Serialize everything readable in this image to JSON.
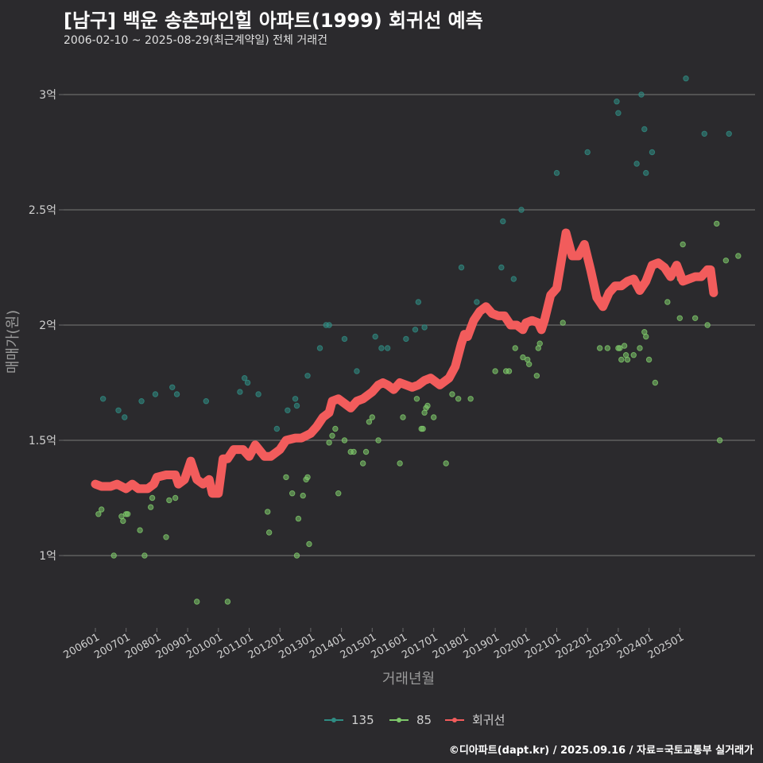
{
  "title": "[남구] 백운 송촌파인힐 아파트(1999) 회귀선 예측",
  "subtitle": "2006-02-10 ~ 2025-08-29(최근계약일) 전체 거래건",
  "source": "©디아파트(dapt.kr) / 2025.09.16 / 자료=국토교통부 실거래가",
  "colors": {
    "background": "#2b2a2d",
    "grid": "#6a6a6a",
    "s135": "#2f8c83",
    "s85": "#7ec86a",
    "regression": "#f25c5c"
  },
  "chart_data": {
    "type": "scatter",
    "xlabel": "거래년월",
    "ylabel": "매매가(원)",
    "ylim": [
      0.7,
      3.2
    ],
    "xlim": [
      2005.6,
      2026.1
    ],
    "x_ticks": [
      "200601",
      "200701",
      "200801",
      "200901",
      "201001",
      "201101",
      "201201",
      "201301",
      "201401",
      "201501",
      "201601",
      "201701",
      "201801",
      "201901",
      "202001",
      "202101",
      "202201",
      "202301",
      "202401",
      "202501"
    ],
    "y_ticks": [
      {
        "value": 1.0,
        "label": "1억"
      },
      {
        "value": 1.5,
        "label": "1.5억"
      },
      {
        "value": 2.0,
        "label": "2억"
      },
      {
        "value": 2.5,
        "label": "2.5억"
      },
      {
        "value": 3.0,
        "label": "3억"
      }
    ],
    "legend": [
      {
        "name": "135",
        "color": "#2f8c83"
      },
      {
        "name": "85",
        "color": "#7ec86a"
      },
      {
        "name": "회귀선",
        "color": "#f25c5c"
      }
    ],
    "series": [
      {
        "name": "135",
        "points": [
          [
            2006.25,
            1.68
          ],
          [
            2006.75,
            1.63
          ],
          [
            2006.95,
            1.6
          ],
          [
            2007.5,
            1.67
          ],
          [
            2007.95,
            1.7
          ],
          [
            2008.5,
            1.73
          ],
          [
            2008.65,
            1.7
          ],
          [
            2009.6,
            1.67
          ],
          [
            2010.7,
            1.71
          ],
          [
            2010.85,
            1.77
          ],
          [
            2010.95,
            1.75
          ],
          [
            2011.3,
            1.7
          ],
          [
            2011.9,
            1.55
          ],
          [
            2012.25,
            1.63
          ],
          [
            2012.5,
            1.68
          ],
          [
            2012.55,
            1.65
          ],
          [
            2012.9,
            1.78
          ],
          [
            2013.3,
            1.9
          ],
          [
            2013.5,
            2.0
          ],
          [
            2013.6,
            2.0
          ],
          [
            2014.1,
            1.94
          ],
          [
            2014.5,
            1.8
          ],
          [
            2015.1,
            1.95
          ],
          [
            2015.3,
            1.9
          ],
          [
            2015.5,
            1.9
          ],
          [
            2016.1,
            1.94
          ],
          [
            2016.4,
            1.98
          ],
          [
            2016.5,
            2.1
          ],
          [
            2016.7,
            1.99
          ],
          [
            2017.9,
            2.25
          ],
          [
            2018.4,
            2.1
          ],
          [
            2019.2,
            2.25
          ],
          [
            2019.25,
            2.45
          ],
          [
            2019.6,
            2.2
          ],
          [
            2019.85,
            2.5
          ],
          [
            2021.0,
            2.66
          ],
          [
            2022.0,
            2.75
          ],
          [
            2022.95,
            2.97
          ],
          [
            2023.0,
            2.92
          ],
          [
            2023.6,
            2.7
          ],
          [
            2023.75,
            3.0
          ],
          [
            2023.85,
            2.85
          ],
          [
            2023.9,
            2.66
          ],
          [
            2024.1,
            2.75
          ],
          [
            2025.2,
            3.07
          ],
          [
            2025.8,
            2.83
          ],
          [
            2026.6,
            2.83
          ]
        ]
      },
      {
        "name": "85",
        "points": [
          [
            2006.1,
            1.18
          ],
          [
            2006.2,
            1.2
          ],
          [
            2006.6,
            1.0
          ],
          [
            2006.85,
            1.17
          ],
          [
            2006.9,
            1.15
          ],
          [
            2007.0,
            1.18
          ],
          [
            2007.05,
            1.18
          ],
          [
            2007.45,
            1.11
          ],
          [
            2007.6,
            1.0
          ],
          [
            2007.8,
            1.21
          ],
          [
            2007.85,
            1.25
          ],
          [
            2008.3,
            1.08
          ],
          [
            2008.4,
            1.24
          ],
          [
            2008.6,
            1.25
          ],
          [
            2009.3,
            0.8
          ],
          [
            2010.3,
            0.8
          ],
          [
            2011.6,
            1.19
          ],
          [
            2011.65,
            1.1
          ],
          [
            2012.2,
            1.34
          ],
          [
            2012.4,
            1.27
          ],
          [
            2012.55,
            1.0
          ],
          [
            2012.6,
            1.16
          ],
          [
            2012.75,
            1.26
          ],
          [
            2012.85,
            1.33
          ],
          [
            2012.9,
            1.34
          ],
          [
            2012.95,
            1.05
          ],
          [
            2013.6,
            1.49
          ],
          [
            2013.7,
            1.52
          ],
          [
            2013.8,
            1.55
          ],
          [
            2013.9,
            1.27
          ],
          [
            2014.1,
            1.5
          ],
          [
            2014.3,
            1.45
          ],
          [
            2014.4,
            1.45
          ],
          [
            2014.7,
            1.4
          ],
          [
            2014.8,
            1.45
          ],
          [
            2014.9,
            1.58
          ],
          [
            2015.0,
            1.6
          ],
          [
            2015.2,
            1.5
          ],
          [
            2015.9,
            1.4
          ],
          [
            2016.0,
            1.6
          ],
          [
            2016.45,
            1.68
          ],
          [
            2016.6,
            1.55
          ],
          [
            2016.65,
            1.55
          ],
          [
            2016.7,
            1.62
          ],
          [
            2016.75,
            1.64
          ],
          [
            2016.8,
            1.65
          ],
          [
            2017.0,
            1.6
          ],
          [
            2017.4,
            1.4
          ],
          [
            2017.6,
            1.7
          ],
          [
            2017.8,
            1.68
          ],
          [
            2018.2,
            1.68
          ],
          [
            2019.0,
            1.8
          ],
          [
            2019.35,
            1.8
          ],
          [
            2019.45,
            1.8
          ],
          [
            2019.65,
            1.9
          ],
          [
            2019.9,
            1.86
          ],
          [
            2020.05,
            1.85
          ],
          [
            2020.1,
            1.83
          ],
          [
            2020.35,
            1.78
          ],
          [
            2020.4,
            1.9
          ],
          [
            2020.45,
            1.92
          ],
          [
            2021.2,
            2.01
          ],
          [
            2022.4,
            1.9
          ],
          [
            2022.65,
            1.9
          ],
          [
            2023.0,
            1.9
          ],
          [
            2023.05,
            1.9
          ],
          [
            2023.1,
            1.85
          ],
          [
            2023.2,
            1.91
          ],
          [
            2023.25,
            1.87
          ],
          [
            2023.3,
            1.85
          ],
          [
            2023.5,
            1.87
          ],
          [
            2023.7,
            1.9
          ],
          [
            2023.85,
            1.97
          ],
          [
            2023.9,
            1.95
          ],
          [
            2024.0,
            1.85
          ],
          [
            2024.2,
            1.75
          ],
          [
            2024.6,
            2.1
          ],
          [
            2025.0,
            2.03
          ],
          [
            2025.0,
            2.2
          ],
          [
            2025.1,
            2.35
          ],
          [
            2025.5,
            2.03
          ],
          [
            2025.9,
            2.0
          ],
          [
            2026.2,
            2.44
          ],
          [
            2026.3,
            1.5
          ],
          [
            2026.5,
            2.28
          ],
          [
            2026.9,
            2.3
          ]
        ]
      },
      {
        "name": "회귀선",
        "points": [
          [
            2006.0,
            1.31
          ],
          [
            2006.2,
            1.3
          ],
          [
            2006.5,
            1.3
          ],
          [
            2006.7,
            1.31
          ],
          [
            2007.0,
            1.29
          ],
          [
            2007.2,
            1.31
          ],
          [
            2007.4,
            1.29
          ],
          [
            2007.7,
            1.29
          ],
          [
            2007.9,
            1.31
          ],
          [
            2008.0,
            1.34
          ],
          [
            2008.3,
            1.35
          ],
          [
            2008.6,
            1.35
          ],
          [
            2008.7,
            1.31
          ],
          [
            2008.9,
            1.33
          ],
          [
            2009.1,
            1.41
          ],
          [
            2009.3,
            1.33
          ],
          [
            2009.5,
            1.31
          ],
          [
            2009.7,
            1.33
          ],
          [
            2009.8,
            1.27
          ],
          [
            2010.0,
            1.27
          ],
          [
            2010.15,
            1.42
          ],
          [
            2010.3,
            1.42
          ],
          [
            2010.5,
            1.46
          ],
          [
            2010.8,
            1.46
          ],
          [
            2011.0,
            1.43
          ],
          [
            2011.2,
            1.48
          ],
          [
            2011.5,
            1.43
          ],
          [
            2011.7,
            1.43
          ],
          [
            2012.0,
            1.46
          ],
          [
            2012.2,
            1.5
          ],
          [
            2012.5,
            1.51
          ],
          [
            2012.7,
            1.51
          ],
          [
            2013.0,
            1.53
          ],
          [
            2013.2,
            1.56
          ],
          [
            2013.4,
            1.6
          ],
          [
            2013.6,
            1.62
          ],
          [
            2013.7,
            1.67
          ],
          [
            2013.9,
            1.68
          ],
          [
            2014.1,
            1.66
          ],
          [
            2014.3,
            1.64
          ],
          [
            2014.5,
            1.67
          ],
          [
            2014.7,
            1.68
          ],
          [
            2015.0,
            1.71
          ],
          [
            2015.2,
            1.74
          ],
          [
            2015.35,
            1.75
          ],
          [
            2015.5,
            1.74
          ],
          [
            2015.7,
            1.72
          ],
          [
            2015.9,
            1.75
          ],
          [
            2016.1,
            1.74
          ],
          [
            2016.3,
            1.73
          ],
          [
            2016.5,
            1.74
          ],
          [
            2016.7,
            1.76
          ],
          [
            2016.9,
            1.77
          ],
          [
            2017.0,
            1.76
          ],
          [
            2017.2,
            1.74
          ],
          [
            2017.5,
            1.77
          ],
          [
            2017.7,
            1.82
          ],
          [
            2017.9,
            1.92
          ],
          [
            2018.0,
            1.96
          ],
          [
            2018.1,
            1.95
          ],
          [
            2018.3,
            2.02
          ],
          [
            2018.5,
            2.06
          ],
          [
            2018.7,
            2.08
          ],
          [
            2018.9,
            2.05
          ],
          [
            2019.1,
            2.04
          ],
          [
            2019.3,
            2.04
          ],
          [
            2019.5,
            2.0
          ],
          [
            2019.7,
            2.0
          ],
          [
            2019.9,
            1.98
          ],
          [
            2020.0,
            2.01
          ],
          [
            2020.2,
            2.02
          ],
          [
            2020.4,
            2.01
          ],
          [
            2020.5,
            1.98
          ],
          [
            2020.6,
            2.02
          ],
          [
            2020.8,
            2.13
          ],
          [
            2021.0,
            2.16
          ],
          [
            2021.15,
            2.28
          ],
          [
            2021.3,
            2.4
          ],
          [
            2021.5,
            2.3
          ],
          [
            2021.7,
            2.3
          ],
          [
            2021.9,
            2.35
          ],
          [
            2022.1,
            2.24
          ],
          [
            2022.3,
            2.12
          ],
          [
            2022.5,
            2.08
          ],
          [
            2022.7,
            2.14
          ],
          [
            2022.9,
            2.17
          ],
          [
            2023.1,
            2.17
          ],
          [
            2023.3,
            2.19
          ],
          [
            2023.5,
            2.2
          ],
          [
            2023.7,
            2.15
          ],
          [
            2023.9,
            2.19
          ],
          [
            2024.1,
            2.26
          ],
          [
            2024.3,
            2.27
          ],
          [
            2024.5,
            2.25
          ],
          [
            2024.7,
            2.21
          ],
          [
            2024.9,
            2.26
          ],
          [
            2025.1,
            2.19
          ],
          [
            2025.3,
            2.2
          ],
          [
            2025.5,
            2.21
          ],
          [
            2025.7,
            2.21
          ],
          [
            2025.9,
            2.24
          ],
          [
            2026.0,
            2.24
          ],
          [
            2026.1,
            2.14
          ]
        ]
      }
    ]
  }
}
